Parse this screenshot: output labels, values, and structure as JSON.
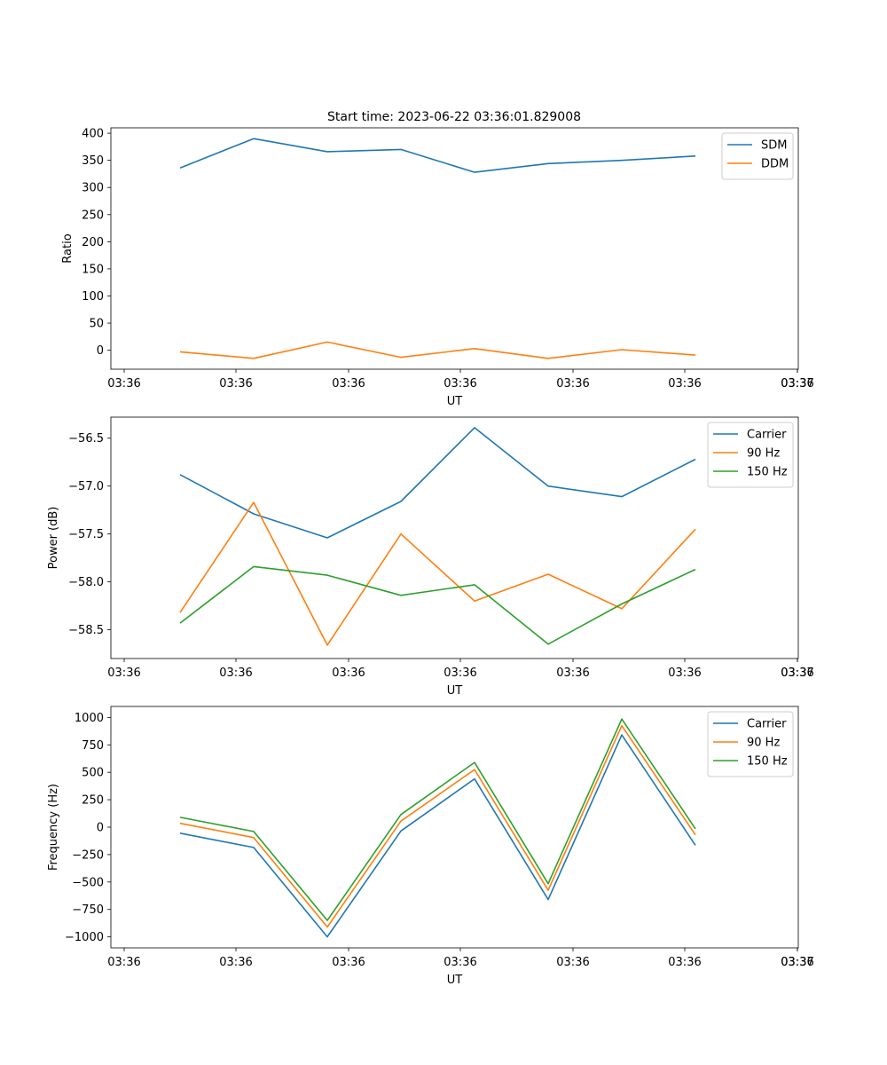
{
  "figure": {
    "title": "Start time: 2023-06-22 03:36:01.829008"
  },
  "chart_data": [
    {
      "type": "line",
      "title": "Start time: 2023-06-22 03:36:01.829008",
      "xlabel": "UT",
      "ylabel": "Ratio",
      "x_tick_labels": [
        "03:36",
        "03:36",
        "03:36",
        "03:36",
        "03:36",
        "03:36",
        "03:36",
        "03:37"
      ],
      "y_ticks": [
        0,
        50,
        100,
        150,
        200,
        250,
        300,
        350,
        400
      ],
      "y_tick_labels": [
        "0",
        "50",
        "100",
        "150",
        "200",
        "250",
        "300",
        "350",
        "400"
      ],
      "ylim": [
        -35,
        410
      ],
      "legend_position": "top-right",
      "grid": false,
      "series": [
        {
          "name": "SDM",
          "color": "#1f77b4",
          "values": [
            336,
            390,
            366,
            370,
            328,
            344,
            350,
            358
          ]
        },
        {
          "name": "DDM",
          "color": "#ff7f0e",
          "values": [
            -3,
            -15,
            15,
            -13,
            3,
            -15,
            1,
            -9
          ]
        }
      ]
    },
    {
      "type": "line",
      "title": "",
      "xlabel": "UT",
      "ylabel": "Power (dB)",
      "x_tick_labels": [
        "03:36",
        "03:36",
        "03:36",
        "03:36",
        "03:36",
        "03:36",
        "03:36",
        "03:37"
      ],
      "y_ticks": [
        -58.5,
        -58.0,
        -57.5,
        -57.0,
        -56.5
      ],
      "y_tick_labels": [
        "−58.5",
        "−58.0",
        "−57.5",
        "−57.0",
        "−56.5"
      ],
      "ylim": [
        -58.8,
        -56.28
      ],
      "legend_position": "top-right",
      "grid": false,
      "series": [
        {
          "name": "Carrier",
          "color": "#1f77b4",
          "values": [
            -56.88,
            -57.29,
            -57.54,
            -57.16,
            -56.39,
            -57.0,
            -57.11,
            -56.72
          ]
        },
        {
          "name": "90 Hz",
          "color": "#ff7f0e",
          "values": [
            -58.32,
            -57.17,
            -58.66,
            -57.5,
            -58.2,
            -57.92,
            -58.28,
            -57.45
          ]
        },
        {
          "name": "150 Hz",
          "color": "#2ca02c",
          "values": [
            -58.43,
            -57.84,
            -57.93,
            -58.14,
            -58.03,
            -58.65,
            -58.23,
            -57.87
          ]
        }
      ]
    },
    {
      "type": "line",
      "title": "",
      "xlabel": "UT",
      "ylabel": "Frequency (Hz)",
      "x_tick_labels": [
        "03:36",
        "03:36",
        "03:36",
        "03:36",
        "03:36",
        "03:36",
        "03:36",
        "03:37"
      ],
      "y_ticks": [
        -1000,
        -750,
        -500,
        -250,
        0,
        250,
        500,
        750,
        1000
      ],
      "y_tick_labels": [
        "−1000",
        "−750",
        "−500",
        "−250",
        "0",
        "250",
        "500",
        "750",
        "1000"
      ],
      "ylim": [
        -1100,
        1100
      ],
      "legend_position": "top-right",
      "grid": false,
      "series": [
        {
          "name": "Carrier",
          "color": "#1f77b4",
          "values": [
            -55,
            -185,
            -1000,
            -35,
            440,
            -660,
            840,
            -165
          ]
        },
        {
          "name": "90 Hz",
          "color": "#ff7f0e",
          "values": [
            35,
            -95,
            -910,
            55,
            525,
            -575,
            925,
            -70
          ]
        },
        {
          "name": "150 Hz",
          "color": "#2ca02c",
          "values": [
            90,
            -40,
            -850,
            115,
            590,
            -515,
            985,
            -15
          ]
        }
      ]
    }
  ]
}
